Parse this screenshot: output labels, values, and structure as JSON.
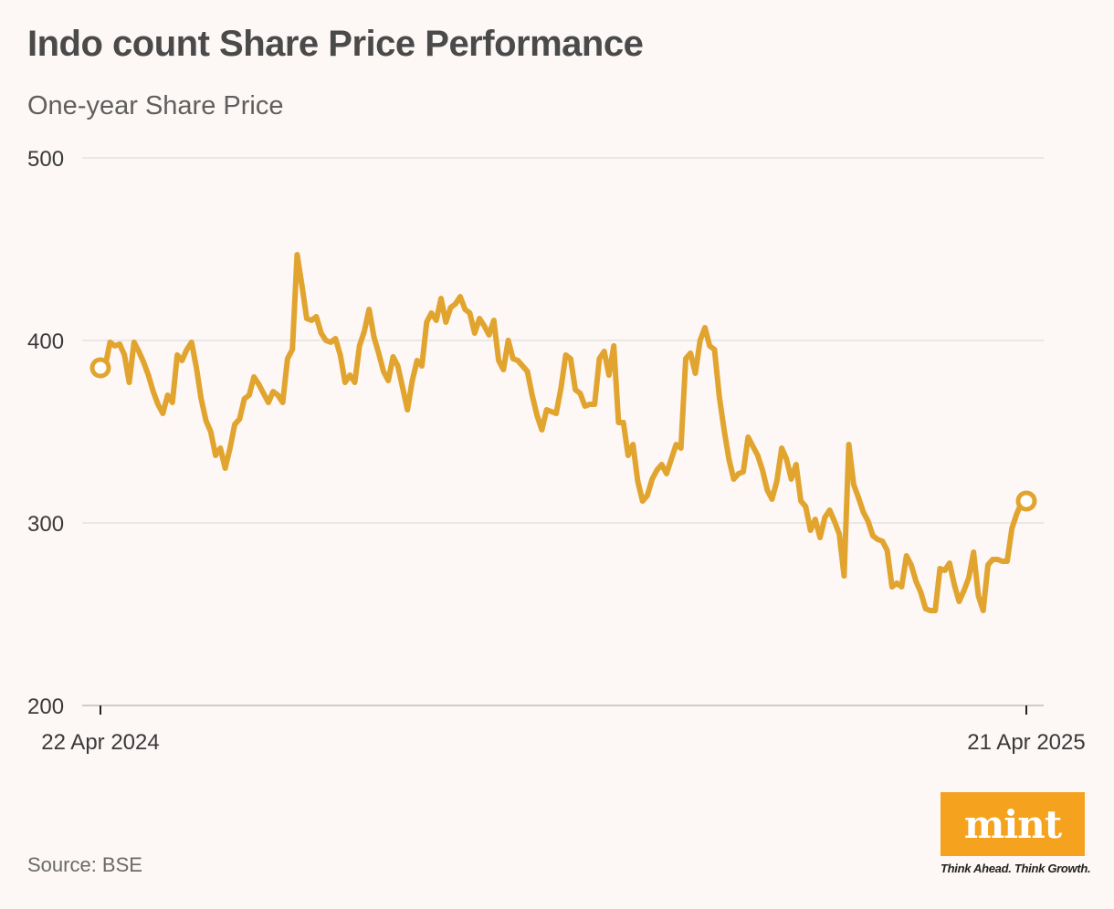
{
  "chart_data": {
    "type": "line",
    "title": "Indo count Share Price Performance",
    "subtitle": "One-year Share Price",
    "xlabel": "",
    "ylabel": "",
    "ylim": [
      200,
      500
    ],
    "yticks": [
      500,
      400,
      300,
      200
    ],
    "xtick_labels": [
      "22 Apr 2024",
      "21 Apr 2025"
    ],
    "grid": true,
    "line_color": "#e1a42f",
    "series": [
      {
        "name": "Indo count share price",
        "values": [
          385,
          386,
          399,
          397,
          398,
          392,
          377,
          399,
          394,
          388,
          381,
          372,
          365,
          360,
          370,
          366,
          392,
          389,
          395,
          399,
          385,
          368,
          356,
          350,
          337,
          341,
          330,
          341,
          354,
          357,
          368,
          370,
          380,
          376,
          371,
          366,
          372,
          370,
          366,
          390,
          395,
          447,
          430,
          412,
          411,
          413,
          404,
          400,
          399,
          401,
          392,
          377,
          381,
          377,
          397,
          405,
          417,
          402,
          393,
          383,
          378,
          391,
          386,
          374,
          362,
          378,
          389,
          386,
          410,
          415,
          411,
          423,
          410,
          418,
          420,
          424,
          417,
          415,
          404,
          412,
          408,
          403,
          411,
          389,
          384,
          400,
          390,
          389,
          386,
          383,
          370,
          359,
          351,
          362,
          361,
          360,
          374,
          392,
          390,
          373,
          371,
          364,
          365,
          365,
          390,
          394,
          381,
          397,
          355,
          355,
          337,
          343,
          323,
          312,
          315,
          324,
          329,
          332,
          327,
          335,
          343,
          341,
          390,
          393,
          382,
          400,
          407,
          397,
          395,
          369,
          351,
          335,
          324,
          327,
          328,
          347,
          342,
          337,
          329,
          318,
          313,
          323,
          341,
          335,
          324,
          332,
          312,
          309,
          296,
          302,
          292,
          303,
          307,
          301,
          294,
          271,
          343,
          321,
          314,
          306,
          301,
          293,
          291,
          290,
          285,
          265,
          267,
          265,
          282,
          277,
          268,
          262,
          253,
          252,
          252,
          275,
          274,
          278,
          266,
          257,
          263,
          270,
          284,
          260,
          252,
          277,
          280,
          280,
          279,
          279,
          297,
          305,
          311,
          312
        ]
      }
    ],
    "markers": [
      {
        "position": "start",
        "value": 385
      },
      {
        "position": "end",
        "value": 312
      }
    ]
  },
  "source": "Source: BSE",
  "logo": {
    "word": "mint",
    "tagline": "Think Ahead. Think Growth.",
    "color": "#f5a21e"
  }
}
